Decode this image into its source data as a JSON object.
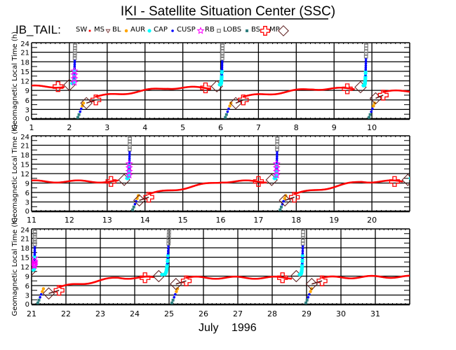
{
  "title": "IKI - Satellite Situation Center (SSC)",
  "satellite": "IB_TAIL:",
  "month_label": "July",
  "year_label": "1996",
  "legend": [
    {
      "label": "SW",
      "symbol": "none",
      "color": "#000000"
    },
    {
      "label": "MS",
      "symbol": "burst",
      "color": "#ff0000"
    },
    {
      "label": "BL",
      "symbol": "triangle-down",
      "color": "#7f3f3f"
    },
    {
      "label": "AUR",
      "symbol": "sun",
      "color": "#ffa500"
    },
    {
      "label": "CAP",
      "symbol": "asterisk",
      "color": "#00ffff"
    },
    {
      "label": "CUSP",
      "symbol": "dot",
      "color": "#0000ff"
    },
    {
      "label": "RB",
      "symbol": "star",
      "color": "#ff00ff"
    },
    {
      "label": "LOBS",
      "symbol": "square",
      "color": "#808080"
    },
    {
      "label": "BS",
      "symbol": "square-filled",
      "color": "#2f7f7f"
    },
    {
      "label": "MP",
      "symbol": "cross",
      "color": "#ff0000"
    },
    {
      "label": "",
      "symbol": "diamond",
      "color": "#5a1a1a"
    }
  ],
  "chart_data": [
    {
      "type": "scatter",
      "panel": 1,
      "x_range_days": [
        1,
        11
      ],
      "xticks": [
        "1",
        "2",
        "3",
        "4",
        "5",
        "6",
        "7",
        "8",
        "9",
        "10"
      ],
      "ylabel": "Geomagnetic Local Time (h)",
      "yticks": [
        "0",
        "3",
        "6",
        "9",
        "12",
        "15",
        "18",
        "21",
        "24"
      ],
      "ylim": [
        0,
        24
      ],
      "perigees": [
        {
          "day": 2.15,
          "in_mlt": 10.2,
          "out_mlt": 4.5,
          "bs_in": 1.7,
          "mp_in": 1.85,
          "mp_out": 2.7,
          "bs_out": 2.45
        },
        {
          "day": 6.05,
          "in_mlt": 9.8,
          "out_mlt": 4.5,
          "bs_in": 5.6,
          "mp_in": 5.75,
          "mp_out": 6.6,
          "bs_out": 6.4
        },
        {
          "day": 9.85,
          "in_mlt": 9.5,
          "out_mlt": 6.0,
          "bs_in": 9.35,
          "mp_in": 9.55,
          "mp_out": 10.3,
          "bs_out": 10.1
        }
      ]
    },
    {
      "type": "scatter",
      "panel": 2,
      "x_range_days": [
        11,
        21
      ],
      "xticks": [
        "11",
        "12",
        "13",
        "14",
        "15",
        "16",
        "17",
        "18",
        "19",
        "20"
      ],
      "ylabel": "Geomagnetic Local Time (h)",
      "yticks": [
        "0",
        "3",
        "6",
        "9",
        "12",
        "15",
        "18",
        "21",
        "24"
      ],
      "ylim": [
        0,
        24
      ],
      "perigees": [
        {
          "day": 13.6,
          "in_mlt": 9.5,
          "out_mlt": 3.0,
          "bs_in": 13.1,
          "mp_in": 13.3,
          "mp_out": 14.1,
          "bs_out": 13.85
        },
        {
          "day": 17.5,
          "in_mlt": 9.5,
          "out_mlt": 3.0,
          "bs_in": 17.0,
          "mp_in": 17.2,
          "mp_out": 17.95,
          "bs_out": 17.7
        },
        {
          "day": 21.1,
          "in_mlt": 9.5,
          "out_mlt": 3.0,
          "bs_in": 20.6,
          "mp_in": 20.8,
          "mp_out": 21.6,
          "bs_out": 21.4
        }
      ]
    },
    {
      "type": "scatter",
      "panel": 3,
      "x_range_days": [
        21,
        32
      ],
      "xticks": [
        "21",
        "22",
        "23",
        "24",
        "25",
        "26",
        "27",
        "28",
        "29",
        "30",
        "31"
      ],
      "ylabel": "Geomagnetic Local Time (h)",
      "yticks": [
        "0",
        "3",
        "6",
        "9",
        "12",
        "15",
        "18",
        "21",
        "24"
      ],
      "ylim": [
        0,
        24
      ],
      "perigees": [
        {
          "day": 21.1,
          "in_mlt": 10.0,
          "out_mlt": 3.0,
          "bs_in": 20.6,
          "mp_in": 20.8,
          "mp_out": 21.8,
          "bs_out": 21.5
        },
        {
          "day": 25.0,
          "in_mlt": 8.5,
          "out_mlt": 6.0,
          "bs_in": 24.3,
          "mp_in": 24.55,
          "mp_out": 25.5,
          "bs_out": 25.2
        },
        {
          "day": 28.9,
          "in_mlt": 8.5,
          "out_mlt": 6.0,
          "bs_in": 28.3,
          "mp_in": 28.55,
          "mp_out": 29.45,
          "bs_out": 29.15
        }
      ]
    }
  ]
}
